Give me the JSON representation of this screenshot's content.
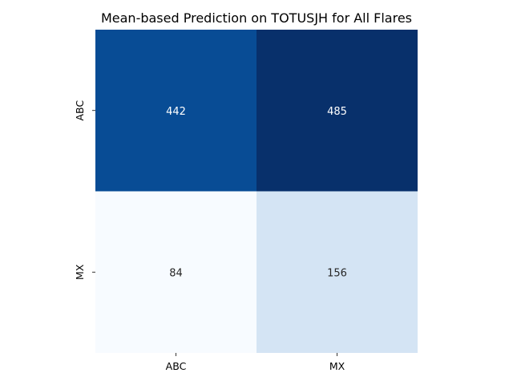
{
  "chart_data": {
    "type": "heatmap",
    "title": "Mean-based Prediction on TOTUSJH for All Flares",
    "x_categories": [
      "ABC",
      "MX"
    ],
    "y_categories": [
      "ABC",
      "MX"
    ],
    "values": [
      [
        442,
        485
      ],
      [
        84,
        156
      ]
    ],
    "xlabel": "",
    "ylabel": "",
    "colormap": "Blues",
    "colorbar": false,
    "grid": false
  }
}
